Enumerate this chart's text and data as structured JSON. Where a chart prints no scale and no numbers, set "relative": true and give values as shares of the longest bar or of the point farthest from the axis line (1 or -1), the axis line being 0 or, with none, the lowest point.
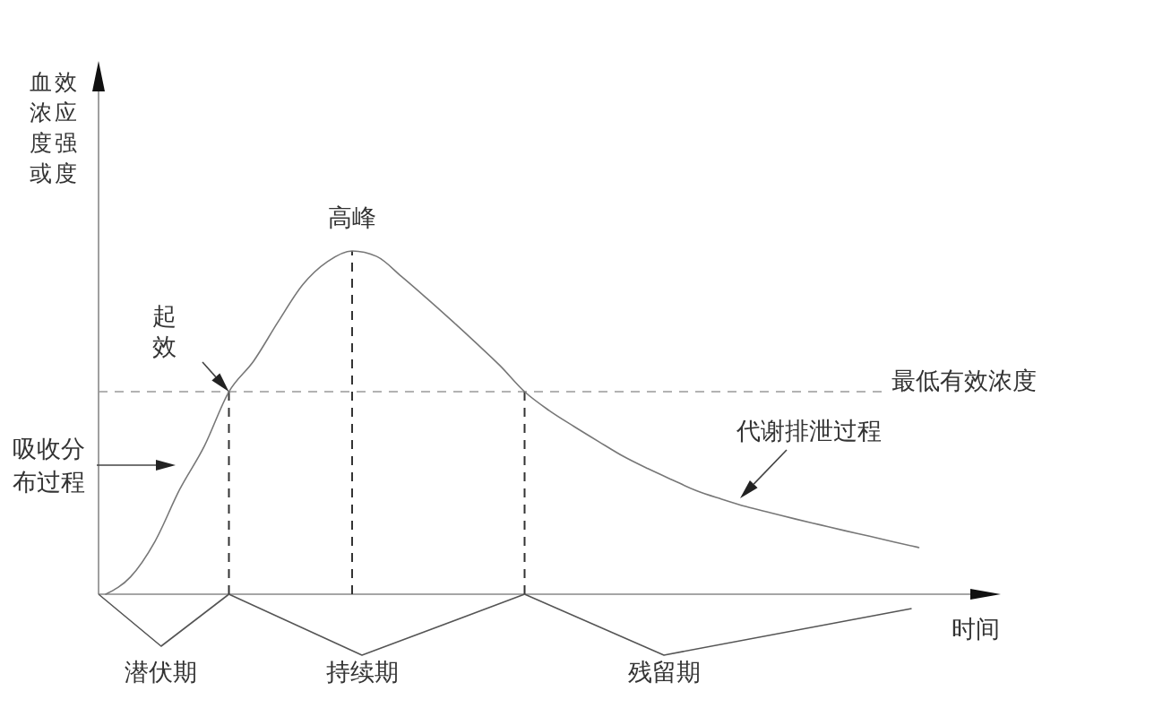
{
  "chart_data": {
    "type": "line",
    "relative": true,
    "ylabel": "血浓度或效应强度",
    "xlabel": "时间",
    "categories": [
      null,
      null,
      null,
      null,
      null,
      null,
      null,
      null,
      null,
      null,
      null,
      null,
      null,
      null,
      null,
      null,
      null,
      null,
      null,
      null,
      null,
      null,
      null,
      null,
      null,
      null,
      null,
      null,
      null,
      null,
      null,
      null,
      null,
      null
    ],
    "series": [
      {
        "color": "#777777",
        "values": [
          0,
          0.05,
          0.154,
          0.305,
          0.431,
          0.59,
          0.679,
          0.794,
          0.902,
          0.969,
          1,
          0.984,
          0.926,
          0.864,
          0.8,
          0.734,
          0.666,
          0.59,
          0.535,
          0.489,
          0.445,
          0.402,
          0.366,
          0.333,
          0.301,
          0.277,
          0.255,
          0.237,
          0.219,
          0.202,
          0.185,
          0.169,
          0.152,
          0.136
        ]
      }
    ],
    "ref_lines": [
      {
        "axis": "y",
        "value": 0.59,
        "label": "最低有效浓度",
        "color": "#999999",
        "line_style": "dashed"
      }
    ],
    "annotations": [
      "高峰",
      "起效",
      "吸收分布过程",
      "代谢排泄过程",
      "潜伏期",
      "持续期",
      "残留期"
    ]
  }
}
